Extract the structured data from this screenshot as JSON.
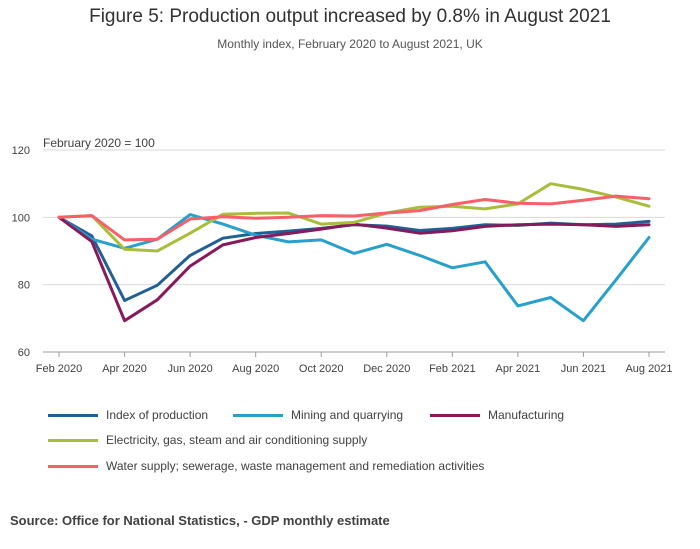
{
  "title": "Figure 5: Production output increased by 0.8% in August 2021",
  "subtitle": "Monthly index, February 2020 to August 2021, UK",
  "source": "Source:  Office for National Statistics, - GDP monthly estimate",
  "chart_data": {
    "type": "line",
    "annotation": "February 2020 = 100",
    "ylim": [
      60,
      120
    ],
    "yticks": [
      60,
      80,
      100,
      120
    ],
    "grid": "horizontal",
    "legend_position": "bottom",
    "x": [
      "Feb 2020",
      "Mar 2020",
      "Apr 2020",
      "May 2020",
      "Jun 2020",
      "Jul 2020",
      "Aug 2020",
      "Sep 2020",
      "Oct 2020",
      "Nov 2020",
      "Dec 2020",
      "Jan 2021",
      "Feb 2021",
      "Mar 2021",
      "Apr 2021",
      "May 2021",
      "Jun 2021",
      "Jul 2021",
      "Aug 2021"
    ],
    "xtick_labels": [
      "Feb 2020",
      "Apr 2020",
      "Jun 2020",
      "Aug 2020",
      "Oct 2020",
      "Dec 2020",
      "Feb 2021",
      "Apr 2021",
      "Jun 2021",
      "Aug 2021"
    ],
    "xtick_indices": [
      0,
      2,
      4,
      6,
      8,
      10,
      12,
      14,
      16,
      18
    ],
    "series": [
      {
        "name": "Index of production",
        "color": "#206095",
        "values": [
          100,
          94.5,
          75.3,
          79.8,
          88.7,
          93.8,
          95.2,
          95.9,
          96.7,
          97.8,
          97.4,
          96.1,
          96.7,
          97.8,
          97.6,
          98.3,
          97.8,
          98.0,
          98.8
        ]
      },
      {
        "name": "Mining and quarrying",
        "color": "#27a0cc",
        "values": [
          100,
          93.5,
          90.8,
          93.5,
          100.8,
          98.0,
          94.7,
          92.7,
          93.3,
          89.3,
          92.0,
          88.7,
          85.0,
          86.8,
          73.7,
          76.2,
          69.3,
          81.5,
          94.0
        ]
      },
      {
        "name": "Manufacturing",
        "color": "#871a5b",
        "values": [
          100,
          92.8,
          69.3,
          75.5,
          85.5,
          91.8,
          94.0,
          95.2,
          96.5,
          98.0,
          96.8,
          95.3,
          96.0,
          97.3,
          97.8,
          98.0,
          97.8,
          97.3,
          97.8
        ]
      },
      {
        "name": "Electricity, gas, steam and air conditioning supply",
        "color": "#a8bd3a",
        "values": [
          100,
          100.5,
          90.5,
          90.0,
          95.3,
          100.9,
          101.2,
          101.3,
          98.0,
          98.5,
          101.3,
          103.0,
          103.3,
          102.5,
          104.0,
          110.0,
          108.3,
          106.0,
          103.3
        ]
      },
      {
        "name": "Water supply; sewerage, waste management and remediation activities",
        "color": "#f66068",
        "values": [
          100,
          100.5,
          93.3,
          93.5,
          99.5,
          100.2,
          99.7,
          100.0,
          100.5,
          100.4,
          101.3,
          102.0,
          103.8,
          105.3,
          104.2,
          104.0,
          105.1,
          106.3,
          105.5
        ]
      }
    ]
  }
}
